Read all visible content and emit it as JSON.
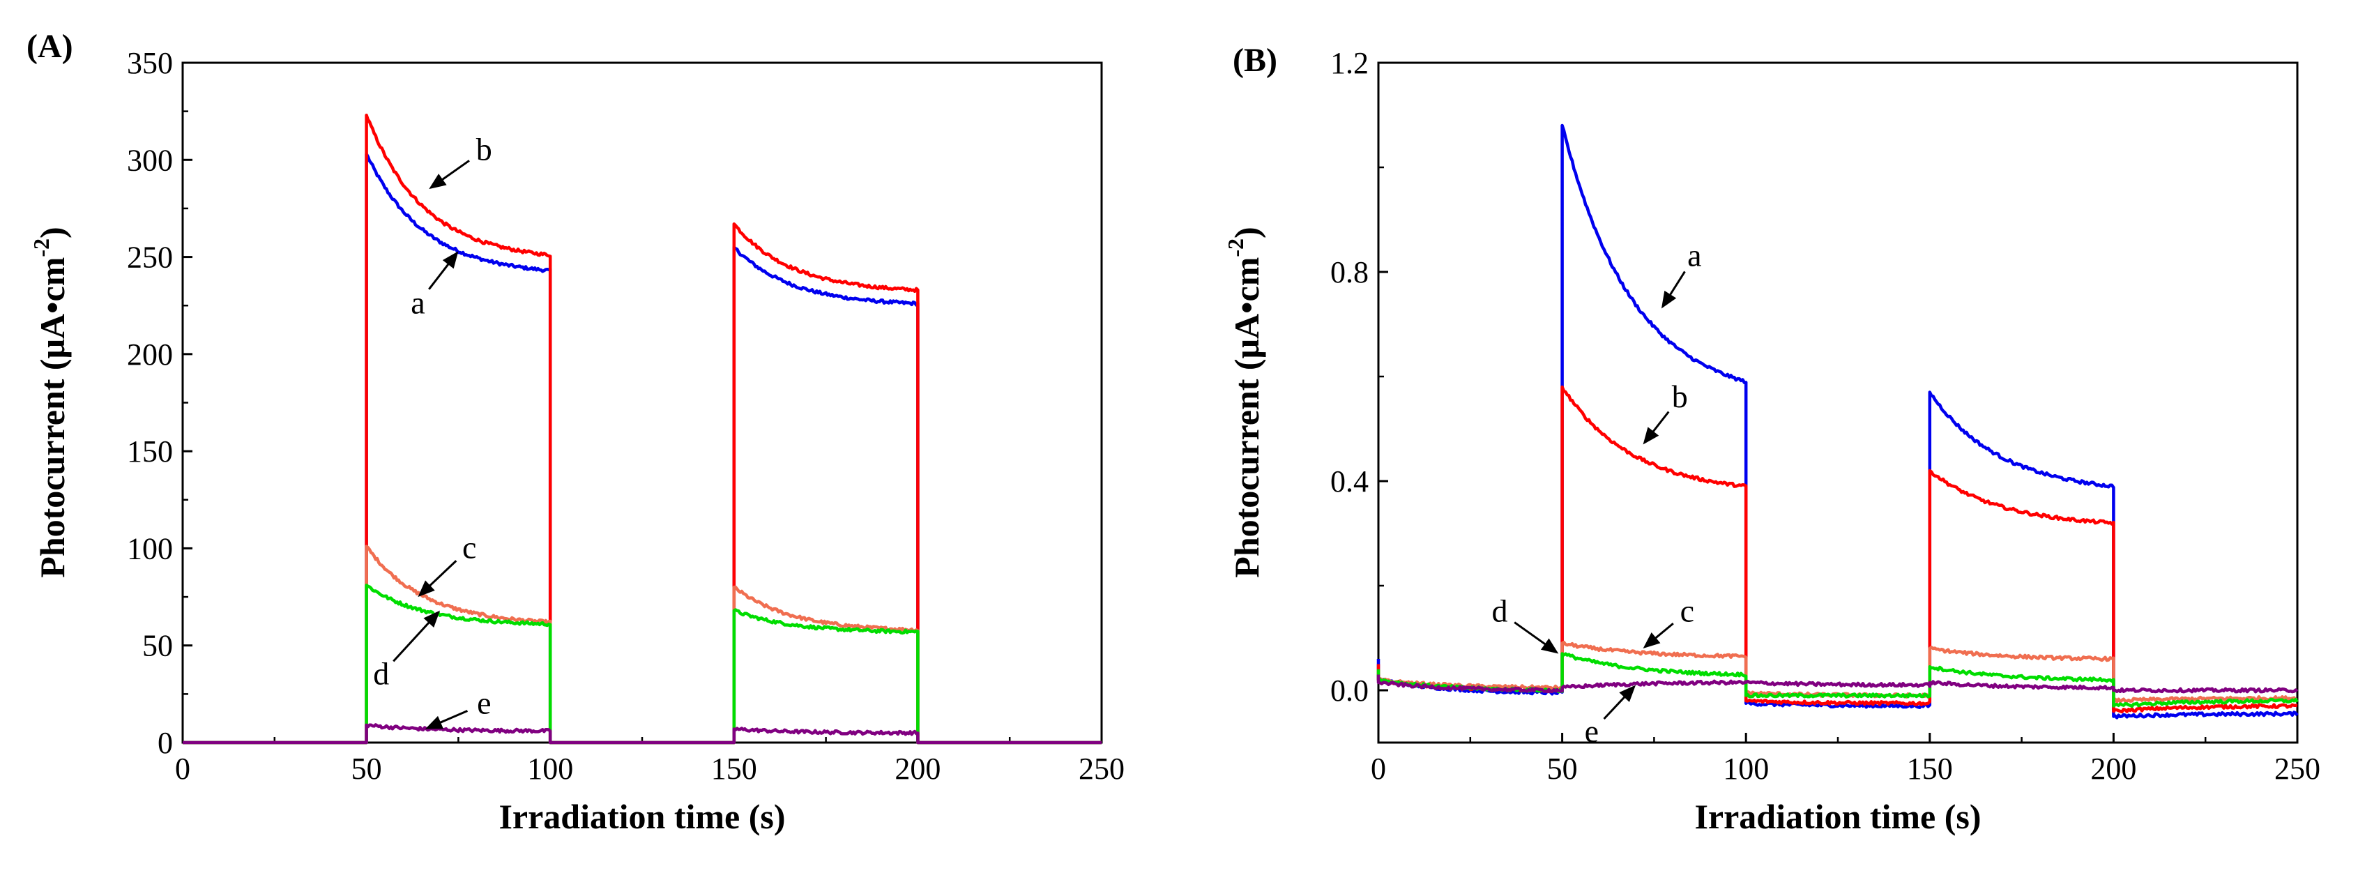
{
  "chart_data": [
    {
      "type": "line",
      "panel_label": "(A)",
      "title": "",
      "xlabel": "Irradiation time (s)",
      "ylabel_main": "Photocurrent (μA•cm",
      "ylabel_sup": "-2",
      "ylabel_close": ")",
      "xlim": [
        0,
        250
      ],
      "ylim": [
        0,
        350
      ],
      "xticks": [
        0,
        50,
        100,
        150,
        200,
        250
      ],
      "yticks": [
        0,
        50,
        100,
        150,
        200,
        250,
        300,
        350
      ],
      "xtick_labels": [
        "0",
        "50",
        "100",
        "150",
        "200",
        "250"
      ],
      "ytick_labels": [
        "0",
        "50",
        "100",
        "150",
        "200",
        "250",
        "300",
        "350"
      ],
      "series": [
        {
          "name": "a",
          "color": "#0000ee",
          "on_periods": [
            [
              50,
              100,
              303,
              243
            ],
            [
              150,
              200,
              255,
              226
            ]
          ],
          "off_value": 0
        },
        {
          "name": "b",
          "color": "#ff0000",
          "on_periods": [
            [
              50,
              100,
              323,
              251
            ],
            [
              150,
              200,
              267,
              233
            ]
          ],
          "off_value": 0
        },
        {
          "name": "c",
          "color": "#f06e50",
          "on_periods": [
            [
              50,
              100,
              101,
              62
            ],
            [
              150,
              200,
              80,
              58
            ]
          ],
          "off_value": 0
        },
        {
          "name": "d",
          "color": "#00dd00",
          "on_periods": [
            [
              50,
              100,
              81,
              61
            ],
            [
              150,
              200,
              68,
              57
            ]
          ],
          "off_value": 0
        },
        {
          "name": "e",
          "color": "#800080",
          "on_periods": [
            [
              50,
              100,
              9,
              6
            ],
            [
              150,
              200,
              7,
              5
            ]
          ],
          "off_value": 0
        }
      ],
      "annotations": [
        {
          "text": "a",
          "target": [
            75,
            253
          ],
          "text_at": [
            64,
            226
          ]
        },
        {
          "text": "b",
          "target": [
            67,
            285
          ],
          "text_at": [
            82,
            305
          ]
        },
        {
          "text": "c",
          "target": [
            64,
            75
          ],
          "text_at": [
            78,
            100
          ]
        },
        {
          "text": "d",
          "target": [
            70,
            68
          ],
          "text_at": [
            54,
            35
          ]
        },
        {
          "text": "e",
          "target": [
            66,
            7
          ],
          "text_at": [
            82,
            20
          ]
        }
      ]
    },
    {
      "type": "line",
      "panel_label": "(B)",
      "title": "",
      "xlabel": "Irradiation time (s)",
      "ylabel_main": "Photocurrent (μA•cm",
      "ylabel_sup": "-2",
      "ylabel_close": ")",
      "xlim": [
        0,
        250
      ],
      "ylim": [
        -0.1,
        1.2
      ],
      "xticks": [
        0,
        50,
        100,
        150,
        200,
        250
      ],
      "yticks": [
        0.0,
        0.4,
        0.8,
        1.2
      ],
      "xtick_labels": [
        "0",
        "50",
        "100",
        "150",
        "200",
        "250"
      ],
      "ytick_labels": [
        "0.0",
        "0.4",
        "0.8",
        "1.2"
      ],
      "series": [
        {
          "name": "a",
          "color": "#0000ee",
          "start_spike": 0.06,
          "segments": [
            [
              0,
              50,
              0.02,
              -0.005
            ],
            [
              50,
              100,
              1.08,
              0.59
            ],
            [
              100,
              150,
              -0.025,
              -0.03
            ],
            [
              150,
              200,
              0.57,
              0.39
            ],
            [
              200,
              250,
              -0.05,
              -0.045
            ]
          ]
        },
        {
          "name": "b",
          "color": "#ff0000",
          "start_spike": 0.05,
          "segments": [
            [
              0,
              50,
              0.02,
              0.0
            ],
            [
              50,
              100,
              0.58,
              0.39
            ],
            [
              100,
              150,
              -0.02,
              -0.025
            ],
            [
              150,
              200,
              0.42,
              0.32
            ],
            [
              200,
              250,
              -0.04,
              -0.03
            ]
          ]
        },
        {
          "name": "c",
          "color": "#f06e50",
          "start_spike": 0.04,
          "segments": [
            [
              0,
              50,
              0.02,
              0.005
            ],
            [
              50,
              100,
              0.09,
              0.065
            ],
            [
              100,
              150,
              -0.005,
              -0.01
            ],
            [
              150,
              200,
              0.08,
              0.06
            ],
            [
              200,
              250,
              -0.02,
              -0.015
            ]
          ]
        },
        {
          "name": "d",
          "color": "#00dd00",
          "start_spike": 0.04,
          "segments": [
            [
              0,
              50,
              0.02,
              0.0
            ],
            [
              50,
              100,
              0.07,
              0.03
            ],
            [
              100,
              150,
              -0.01,
              -0.01
            ],
            [
              150,
              200,
              0.045,
              0.02
            ],
            [
              200,
              250,
              -0.03,
              -0.02
            ]
          ]
        },
        {
          "name": "e",
          "color": "#800080",
          "start_spike": 0.03,
          "segments": [
            [
              0,
              50,
              0.015,
              0.0
            ],
            [
              50,
              100,
              0.005,
              0.015
            ],
            [
              100,
              150,
              0.015,
              0.01
            ],
            [
              150,
              200,
              0.015,
              0.005
            ],
            [
              200,
              250,
              0.0,
              0.0
            ]
          ]
        }
      ],
      "annotations": [
        {
          "text": "a",
          "target": [
            77,
            0.73
          ],
          "text_at": [
            86,
            0.83
          ]
        },
        {
          "text": "b",
          "target": [
            72,
            0.47
          ],
          "text_at": [
            82,
            0.56
          ]
        },
        {
          "text": "c",
          "target": [
            72,
            0.08
          ],
          "text_at": [
            84,
            0.15
          ]
        },
        {
          "text": "d",
          "target": [
            49,
            0.07
          ],
          "text_at": [
            33,
            0.15
          ]
        },
        {
          "text": "e",
          "target": [
            70,
            0.01
          ],
          "text_at": [
            58,
            -0.08
          ]
        }
      ]
    }
  ]
}
